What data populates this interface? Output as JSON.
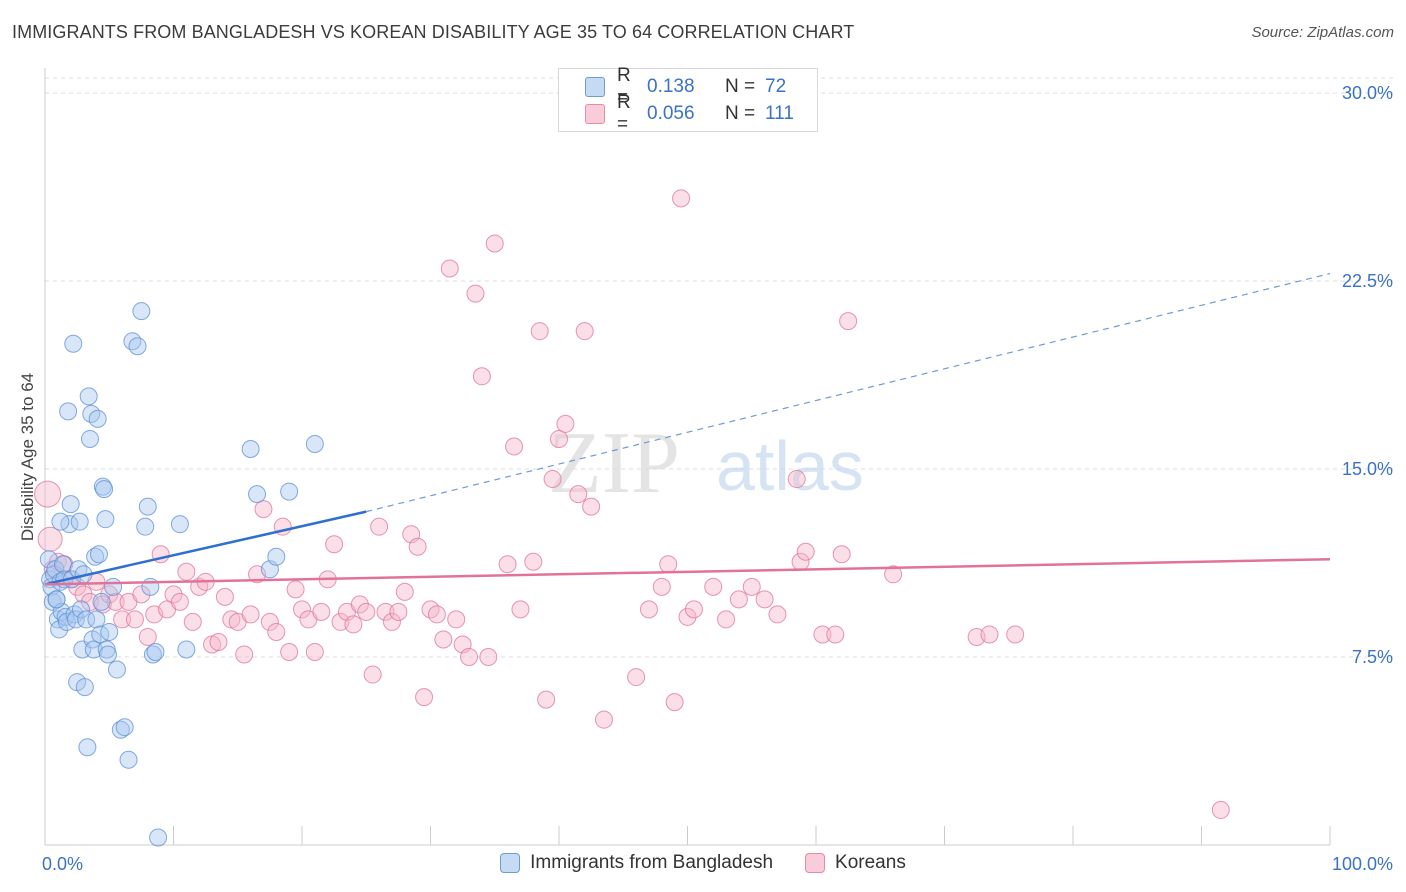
{
  "title": "IMMIGRANTS FROM BANGLADESH VS KOREAN DISABILITY AGE 35 TO 64 CORRELATION CHART",
  "source": "Source: ZipAtlas.com",
  "watermark": {
    "zip": "ZIP",
    "atlas": "atlas"
  },
  "legend": {
    "rows": [
      {
        "r_label": "R =",
        "r_value": "0.138",
        "n_label": "N =",
        "n_value": "72",
        "color": "#a9c8ef"
      },
      {
        "r_label": "R =",
        "r_value": "0.056",
        "n_label": "N =",
        "n_value": "111",
        "color": "#f5b8cb"
      }
    ]
  },
  "bottom_legend": {
    "blue": "Immigrants from Bangladesh",
    "pink": "Koreans"
  },
  "chart_data": {
    "type": "scatter",
    "title": "IMMIGRANTS FROM BANGLADESH VS KOREAN DISABILITY AGE 35 TO 64 CORRELATION CHART",
    "xlabel": "",
    "ylabel": "Disability Age 35 to 64",
    "xlim": [
      0,
      100
    ],
    "ylim": [
      0,
      31
    ],
    "x_tick_labels": [
      "0.0%",
      "100.0%"
    ],
    "y_ticks": [
      7.5,
      15.0,
      22.5,
      30.0
    ],
    "y_tick_labels": [
      "7.5%",
      "15.0%",
      "22.5%",
      "30.0%"
    ],
    "grid": true,
    "legend_position": "top-center",
    "series": [
      {
        "name": "Immigrants from Bangladesh",
        "color": "#5b8fd6",
        "fill": "#a9c8ef",
        "trend": {
          "x": [
            0,
            25
          ],
          "y": [
            10.4,
            13.3
          ],
          "dashed_extension": {
            "x": [
              25,
              100
            ],
            "y": [
              13.3,
              22.8
            ]
          }
        },
        "points": [
          [
            0.3,
            11.4
          ],
          [
            0.4,
            10.6
          ],
          [
            0.5,
            10.3
          ],
          [
            0.6,
            9.7
          ],
          [
            0.7,
            10.8
          ],
          [
            0.8,
            11.0
          ],
          [
            0.9,
            9.8
          ],
          [
            1.0,
            9.0
          ],
          [
            1.1,
            8.6
          ],
          [
            1.2,
            10.5
          ],
          [
            1.3,
            9.3
          ],
          [
            1.4,
            11.2
          ],
          [
            1.5,
            10.6
          ],
          [
            1.6,
            9.1
          ],
          [
            1.7,
            8.9
          ],
          [
            1.8,
            17.3
          ],
          [
            1.9,
            12.8
          ],
          [
            2.0,
            13.6
          ],
          [
            2.1,
            10.6
          ],
          [
            2.2,
            20.0
          ],
          [
            2.3,
            9.2
          ],
          [
            2.4,
            9.0
          ],
          [
            2.5,
            6.5
          ],
          [
            2.6,
            11.0
          ],
          [
            2.7,
            12.9
          ],
          [
            2.8,
            9.4
          ],
          [
            2.9,
            7.8
          ],
          [
            3.0,
            10.8
          ],
          [
            3.1,
            6.3
          ],
          [
            3.2,
            9.0
          ],
          [
            3.3,
            3.9
          ],
          [
            3.4,
            17.9
          ],
          [
            3.5,
            16.2
          ],
          [
            3.6,
            17.2
          ],
          [
            3.7,
            8.2
          ],
          [
            3.8,
            7.8
          ],
          [
            3.9,
            11.5
          ],
          [
            4.0,
            9.0
          ],
          [
            4.1,
            17.0
          ],
          [
            4.2,
            11.6
          ],
          [
            4.3,
            8.4
          ],
          [
            4.4,
            9.7
          ],
          [
            4.5,
            14.3
          ],
          [
            4.6,
            14.2
          ],
          [
            4.7,
            13.0
          ],
          [
            4.8,
            7.8
          ],
          [
            4.9,
            7.6
          ],
          [
            5.0,
            8.5
          ],
          [
            5.3,
            10.3
          ],
          [
            5.6,
            7.0
          ],
          [
            5.9,
            4.6
          ],
          [
            6.2,
            4.7
          ],
          [
            6.5,
            3.4
          ],
          [
            6.8,
            20.1
          ],
          [
            7.2,
            19.9
          ],
          [
            7.5,
            21.3
          ],
          [
            7.8,
            12.7
          ],
          [
            8.0,
            13.5
          ],
          [
            8.2,
            10.3
          ],
          [
            8.4,
            7.6
          ],
          [
            8.6,
            7.7
          ],
          [
            8.8,
            0.3
          ],
          [
            10.5,
            12.8
          ],
          [
            11.0,
            7.8
          ],
          [
            16.0,
            15.8
          ],
          [
            16.5,
            14.0
          ],
          [
            17.5,
            11.0
          ],
          [
            18.0,
            11.5
          ],
          [
            19.0,
            14.1
          ],
          [
            21.0,
            16.0
          ],
          [
            0.9,
            9.8
          ],
          [
            1.2,
            12.9
          ]
        ]
      },
      {
        "name": "Koreans",
        "color": "#e2729a",
        "fill": "#f5b8cb",
        "trend": {
          "x": [
            0,
            100
          ],
          "y": [
            10.4,
            11.4
          ]
        },
        "points": [
          [
            0.2,
            14.0
          ],
          [
            0.4,
            12.2
          ],
          [
            0.6,
            11.0
          ],
          [
            1.0,
            11.3
          ],
          [
            1.5,
            11.2
          ],
          [
            2.0,
            10.6
          ],
          [
            2.5,
            10.3
          ],
          [
            3.0,
            10.0
          ],
          [
            3.5,
            9.7
          ],
          [
            4.0,
            10.5
          ],
          [
            4.5,
            9.6
          ],
          [
            5.0,
            10.0
          ],
          [
            5.5,
            9.7
          ],
          [
            6.0,
            9.0
          ],
          [
            6.5,
            9.7
          ],
          [
            7.0,
            9.0
          ],
          [
            7.5,
            10.0
          ],
          [
            8.0,
            8.3
          ],
          [
            8.5,
            9.2
          ],
          [
            9.0,
            11.6
          ],
          [
            9.5,
            9.4
          ],
          [
            10.0,
            10.0
          ],
          [
            10.5,
            9.7
          ],
          [
            11.0,
            10.9
          ],
          [
            11.5,
            8.9
          ],
          [
            12.0,
            10.3
          ],
          [
            12.5,
            10.5
          ],
          [
            13.0,
            8.0
          ],
          [
            13.5,
            8.1
          ],
          [
            14.0,
            9.9
          ],
          [
            14.5,
            9.0
          ],
          [
            15.0,
            8.9
          ],
          [
            15.5,
            7.6
          ],
          [
            16.0,
            9.2
          ],
          [
            16.5,
            10.8
          ],
          [
            17.0,
            13.4
          ],
          [
            17.5,
            8.9
          ],
          [
            18.0,
            8.5
          ],
          [
            18.5,
            12.7
          ],
          [
            19.0,
            7.7
          ],
          [
            19.5,
            10.2
          ],
          [
            20.0,
            9.4
          ],
          [
            20.5,
            9.0
          ],
          [
            21.0,
            7.7
          ],
          [
            21.5,
            9.3
          ],
          [
            22.0,
            10.6
          ],
          [
            22.5,
            12.0
          ],
          [
            23.0,
            8.9
          ],
          [
            23.5,
            9.3
          ],
          [
            24.0,
            8.8
          ],
          [
            24.5,
            9.6
          ],
          [
            25.0,
            9.3
          ],
          [
            25.5,
            6.8
          ],
          [
            26.0,
            12.7
          ],
          [
            26.5,
            9.3
          ],
          [
            27.0,
            8.9
          ],
          [
            27.5,
            9.3
          ],
          [
            28.0,
            10.1
          ],
          [
            28.5,
            12.4
          ],
          [
            29.0,
            11.9
          ],
          [
            29.5,
            5.9
          ],
          [
            30.0,
            9.4
          ],
          [
            30.5,
            9.2
          ],
          [
            31.0,
            8.2
          ],
          [
            31.5,
            23.0
          ],
          [
            32.0,
            9.0
          ],
          [
            32.5,
            8.0
          ],
          [
            33.0,
            7.5
          ],
          [
            33.5,
            22.0
          ],
          [
            34.0,
            18.7
          ],
          [
            34.5,
            7.5
          ],
          [
            35.0,
            24.0
          ],
          [
            36.0,
            11.2
          ],
          [
            36.5,
            15.9
          ],
          [
            37.0,
            9.4
          ],
          [
            38.0,
            11.3
          ],
          [
            38.5,
            20.5
          ],
          [
            39.0,
            5.8
          ],
          [
            39.5,
            14.6
          ],
          [
            40.0,
            16.2
          ],
          [
            40.5,
            16.8
          ],
          [
            41.5,
            14.0
          ],
          [
            42.0,
            20.5
          ],
          [
            42.5,
            13.5
          ],
          [
            43.5,
            5.0
          ],
          [
            46.0,
            6.7
          ],
          [
            47.0,
            9.4
          ],
          [
            48.0,
            10.3
          ],
          [
            48.5,
            11.2
          ],
          [
            49.0,
            5.7
          ],
          [
            49.5,
            25.8
          ],
          [
            50.0,
            9.1
          ],
          [
            50.5,
            9.4
          ],
          [
            52.0,
            10.3
          ],
          [
            53.0,
            9.0
          ],
          [
            54.0,
            9.8
          ],
          [
            55.0,
            10.3
          ],
          [
            56.0,
            9.8
          ],
          [
            57.0,
            9.2
          ],
          [
            58.5,
            14.6
          ],
          [
            58.8,
            11.3
          ],
          [
            59.2,
            11.7
          ],
          [
            60.5,
            8.4
          ],
          [
            61.5,
            8.4
          ],
          [
            62.0,
            11.6
          ],
          [
            62.5,
            20.9
          ],
          [
            66.0,
            10.8
          ],
          [
            72.5,
            8.3
          ],
          [
            73.5,
            8.4
          ],
          [
            75.5,
            8.4
          ],
          [
            91.5,
            1.4
          ]
        ]
      }
    ]
  }
}
